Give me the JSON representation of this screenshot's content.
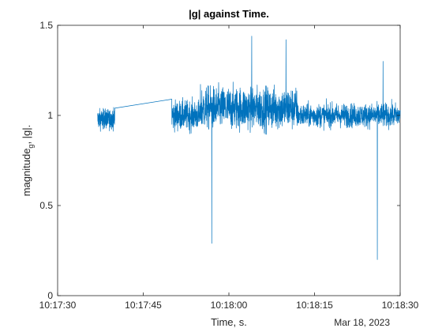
{
  "chart_data": {
    "type": "line",
    "title": "|g| against Time.",
    "xlabel": "Time, s.",
    "ylabel_main": "magnitude",
    "ylabel_sub": "g",
    "ylabel_rest": ", |g|.",
    "date_label": "Mar 18, 2023",
    "xlim": [
      "10:17:30",
      "10:18:30"
    ],
    "ylim": [
      0,
      1.5
    ],
    "x_ticks": [
      "10:17:30",
      "10:17:45",
      "10:18:00",
      "10:18:15",
      "10:18:30"
    ],
    "y_ticks": [
      "0",
      "0.5",
      "1",
      "1.5"
    ],
    "grid": false,
    "line_color": "#0072BD",
    "series": [
      {
        "segments": [
          {
            "x": [
              "10:17:37",
              "10:17:40"
            ],
            "y_center": [
              0.98,
              0.98
            ],
            "y_min": 0.82,
            "y_max": 1.08
          },
          {
            "x": [
              "10:17:40",
              "10:17:50"
            ],
            "y_center": [
              1.04,
              1.09
            ],
            "y_min": 1.04,
            "y_max": 1.09
          },
          {
            "x": [
              "10:17:50",
              "10:18:30"
            ],
            "y_center": [
              1.0,
              1.0
            ],
            "y_min": 0.2,
            "y_max": 1.44
          }
        ],
        "notable_points": [
          {
            "x": "10:17:57",
            "y": 0.29
          },
          {
            "x": "10:18:04",
            "y": 1.44
          },
          {
            "x": "10:18:10",
            "y": 1.42
          },
          {
            "x": "10:18:26",
            "y": 0.2
          },
          {
            "x": "10:18:27",
            "y": 1.3
          }
        ]
      }
    ]
  }
}
